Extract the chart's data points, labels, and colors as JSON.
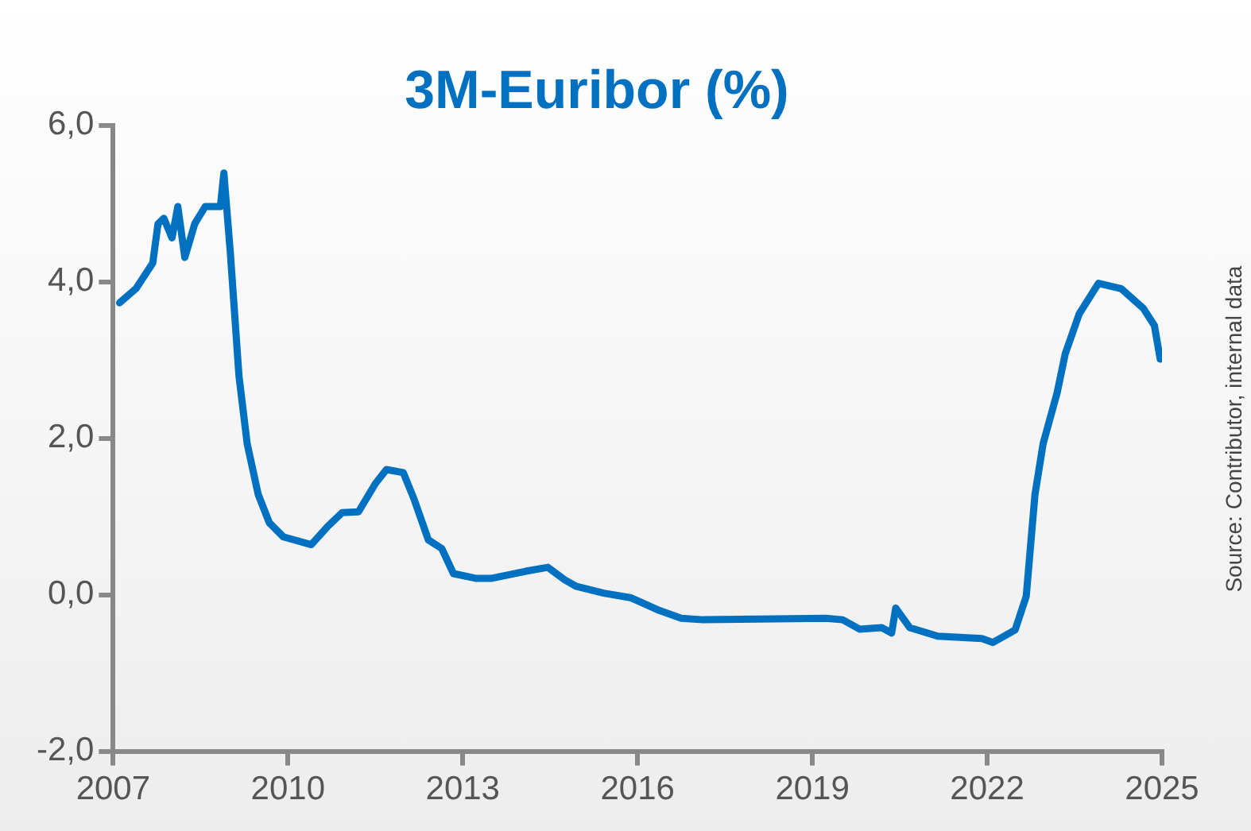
{
  "chart_data": {
    "type": "line",
    "title": "3M-Euribor (%)",
    "annotations": [
      "Source: Contributor, internal data"
    ],
    "x": [
      2007.11,
      2007.39,
      2007.68,
      2007.77,
      2007.87,
      2008.01,
      2008.11,
      2008.23,
      2008.4,
      2008.58,
      2008.84,
      2008.9,
      2009.01,
      2009.16,
      2009.3,
      2009.49,
      2009.68,
      2009.92,
      2010.4,
      2010.69,
      2010.93,
      2011.21,
      2011.5,
      2011.69,
      2011.98,
      2012.17,
      2012.41,
      2012.64,
      2012.84,
      2013.22,
      2013.5,
      2014.08,
      2014.46,
      2014.75,
      2014.94,
      2015.42,
      2015.89,
      2016.37,
      2016.75,
      2017.13,
      2019.23,
      2019.52,
      2019.81,
      2020.19,
      2020.36,
      2020.43,
      2020.67,
      2021.15,
      2021.91,
      2022.1,
      2022.48,
      2022.67,
      2022.82,
      2022.96,
      2023.2,
      2023.34,
      2023.58,
      2023.91,
      2024.3,
      2024.68,
      2024.87,
      2024.97
    ],
    "series": [
      {
        "color": "#0070c0",
        "values": [
          3.73,
          3.91,
          4.24,
          4.74,
          4.81,
          4.56,
          4.96,
          4.31,
          4.74,
          4.96,
          4.96,
          5.39,
          4.38,
          2.79,
          1.93,
          1.28,
          0.92,
          0.74,
          0.64,
          0.88,
          1.05,
          1.06,
          1.42,
          1.6,
          1.56,
          1.21,
          0.7,
          0.59,
          0.27,
          0.21,
          0.21,
          0.3,
          0.35,
          0.19,
          0.11,
          0.02,
          -0.04,
          -0.2,
          -0.3,
          -0.32,
          -0.3,
          -0.32,
          -0.44,
          -0.42,
          -0.49,
          -0.17,
          -0.42,
          -0.53,
          -0.56,
          -0.61,
          -0.45,
          -0.02,
          1.28,
          1.93,
          2.58,
          3.08,
          3.59,
          3.98,
          3.91,
          3.66,
          3.44,
          3.01
        ]
      }
    ],
    "xlim": [
      2007,
      2025
    ],
    "xticks": [
      2007,
      2010,
      2013,
      2016,
      2019,
      2022,
      2025
    ],
    "ylim": [
      -2,
      6
    ],
    "yticks": [
      {
        "value": -2,
        "label": "-2,0"
      },
      {
        "value": 0,
        "label": "0,0"
      },
      {
        "value": 2,
        "label": "2,0"
      },
      {
        "value": 4,
        "label": "4,0"
      },
      {
        "value": 6,
        "label": "6,0"
      }
    ],
    "grid": false,
    "legend": false,
    "marker": "none",
    "line_style": "solid"
  }
}
